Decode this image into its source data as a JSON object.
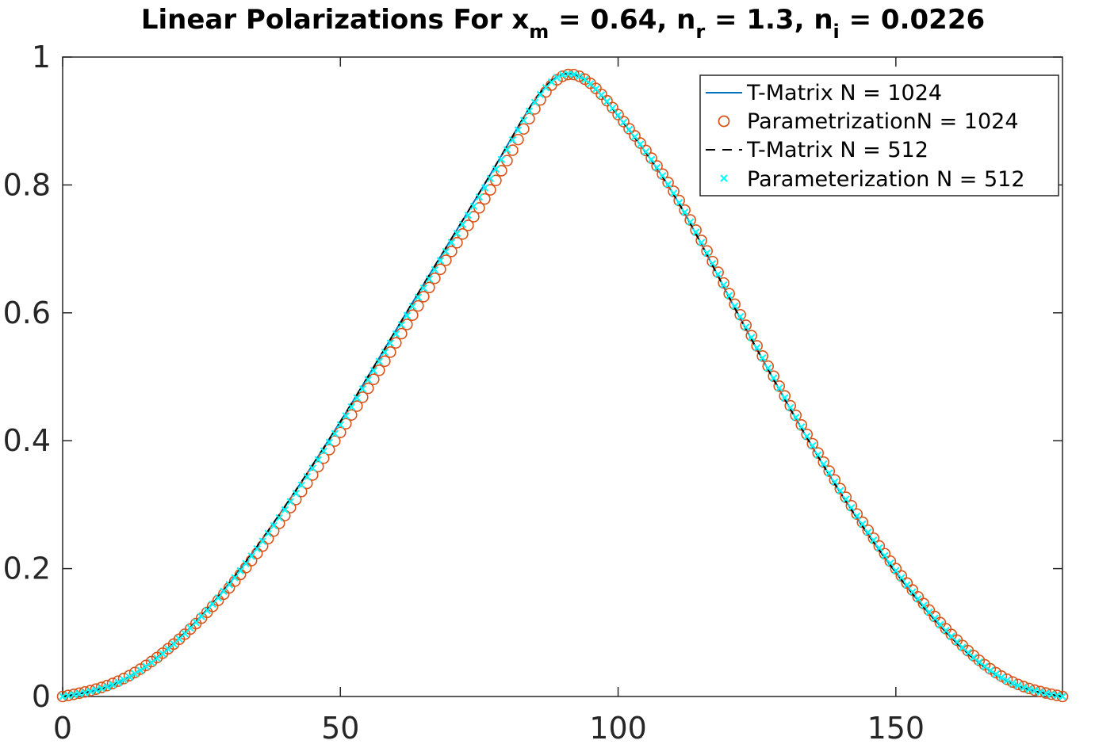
{
  "chart_data": {
    "type": "line",
    "title": {
      "prefix": "Linear Polarizations For x",
      "sub1": "m",
      "part2": " = 0.64, n",
      "sub2": "r",
      "part3": " = 1.3, n",
      "sub3": "i",
      "part4": " = 0.0226"
    },
    "xlabel": "",
    "ylabel": "",
    "xlim": [
      0,
      180
    ],
    "ylim": [
      0,
      1
    ],
    "xticks": [
      0,
      50,
      100,
      150
    ],
    "yticks": [
      0,
      0.2,
      0.4,
      0.6,
      0.8,
      1
    ],
    "xtick_labels": [
      "0",
      "50",
      "100",
      "150"
    ],
    "ytick_labels": [
      "0",
      "0.2",
      "0.4",
      "0.6",
      "0.8",
      "1"
    ],
    "grid": false,
    "legend_position": "top-right",
    "x": [
      0,
      10,
      20,
      30,
      40,
      50,
      60,
      70,
      80,
      90,
      100,
      110,
      120,
      130,
      140,
      150,
      160,
      170,
      180
    ],
    "series": [
      {
        "name": "T-Matrix N = 1024",
        "style": "solid-line",
        "color": "#0072BD",
        "values": [
          0,
          0.022,
          0.083,
          0.177,
          0.297,
          0.43,
          0.573,
          0.716,
          0.861,
          0.973,
          0.908,
          0.785,
          0.624,
          0.465,
          0.319,
          0.194,
          0.092,
          0.024,
          0
        ]
      },
      {
        "name": "ParametrizationN = 1024",
        "style": "circle-marker",
        "color": "#D95319",
        "values": [
          0,
          0.024,
          0.082,
          0.17,
          0.283,
          0.413,
          0.553,
          0.696,
          0.838,
          0.97,
          0.91,
          0.79,
          0.63,
          0.47,
          0.325,
          0.2,
          0.097,
          0.027,
          0
        ]
      },
      {
        "name": "T-Matrix N = 512",
        "style": "dashed-line",
        "color": "#000000",
        "values": [
          0,
          0.022,
          0.083,
          0.177,
          0.297,
          0.43,
          0.573,
          0.716,
          0.861,
          0.973,
          0.908,
          0.785,
          0.624,
          0.465,
          0.319,
          0.194,
          0.092,
          0.024,
          0
        ]
      },
      {
        "name": "Parameterization N = 512",
        "style": "x-marker",
        "color": "#00FFFF",
        "values": [
          0,
          0.022,
          0.082,
          0.175,
          0.292,
          0.425,
          0.567,
          0.71,
          0.855,
          0.972,
          0.909,
          0.787,
          0.627,
          0.467,
          0.322,
          0.197,
          0.094,
          0.025,
          0
        ]
      }
    ]
  }
}
